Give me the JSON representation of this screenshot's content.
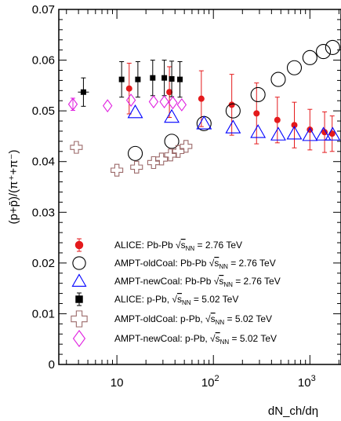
{
  "chart_data": {
    "type": "scatter",
    "title": "",
    "xlabel": "dN_ch/dη",
    "ylabel": "(p+p̄)/(π⁺+π⁻)",
    "x_scale": "log",
    "xlim": [
      2.5,
      2100
    ],
    "ylim": [
      0,
      0.07
    ],
    "x_ticks": [
      {
        "value": 10,
        "base": "10",
        "exp": ""
      },
      {
        "value": 100,
        "base": "10",
        "exp": "2"
      },
      {
        "value": 1000,
        "base": "10",
        "exp": "3"
      }
    ],
    "y_ticks": [
      0,
      0.01,
      0.02,
      0.03,
      0.04,
      0.05,
      0.06,
      0.07
    ],
    "y_tick_labels": [
      "0",
      "0.01",
      "0.02",
      "0.03",
      "0.04",
      "0.05",
      "0.06",
      "0.07"
    ],
    "grid": false,
    "legend_position": "bottom-left",
    "series": [
      {
        "name": "ALICE: Pb-Pb",
        "energy": "2.76 TeV",
        "marker": "filled-circle",
        "color": "#e41a1c",
        "points": [
          {
            "x": 13.4,
            "y": 0.0544,
            "err": 0.005
          },
          {
            "x": 35,
            "y": 0.0537,
            "err": 0.005
          },
          {
            "x": 75,
            "y": 0.0524,
            "err": 0.0055
          },
          {
            "x": 155,
            "y": 0.0512,
            "err": 0.006
          },
          {
            "x": 280,
            "y": 0.0495,
            "err": 0.006
          },
          {
            "x": 460,
            "y": 0.0482,
            "err": 0.0045
          },
          {
            "x": 690,
            "y": 0.0472,
            "err": 0.0045
          },
          {
            "x": 1000,
            "y": 0.0463,
            "err": 0.004
          },
          {
            "x": 1420,
            "y": 0.0458,
            "err": 0.004
          },
          {
            "x": 1700,
            "y": 0.0455,
            "err": 0.0035
          }
        ]
      },
      {
        "name": "AMPT-oldCoal:   Pb-Pb",
        "energy": "2.76 TeV",
        "marker": "open-circle",
        "color": "#000000",
        "points": [
          {
            "x": 15.5,
            "y": 0.0416
          },
          {
            "x": 37,
            "y": 0.044
          },
          {
            "x": 80,
            "y": 0.0475
          },
          {
            "x": 160,
            "y": 0.05
          },
          {
            "x": 290,
            "y": 0.0532
          },
          {
            "x": 470,
            "y": 0.0562
          },
          {
            "x": 690,
            "y": 0.0585
          },
          {
            "x": 1000,
            "y": 0.0605
          },
          {
            "x": 1380,
            "y": 0.0617
          },
          {
            "x": 1720,
            "y": 0.0625
          }
        ]
      },
      {
        "name": "AMPT-newCoal: Pb-Pb",
        "energy": "2.76 TeV",
        "marker": "open-triangle",
        "color": "#0000ff",
        "points": [
          {
            "x": 15.5,
            "y": 0.0497
          },
          {
            "x": 37,
            "y": 0.0488
          },
          {
            "x": 80,
            "y": 0.0475
          },
          {
            "x": 160,
            "y": 0.0467
          },
          {
            "x": 290,
            "y": 0.0458
          },
          {
            "x": 470,
            "y": 0.0453
          },
          {
            "x": 690,
            "y": 0.0455
          },
          {
            "x": 1000,
            "y": 0.0452
          },
          {
            "x": 1380,
            "y": 0.0453
          },
          {
            "x": 1720,
            "y": 0.0453
          }
        ]
      },
      {
        "name": "ALICE: p-Pb,",
        "energy": "5.02 TeV",
        "marker": "filled-square",
        "color": "#000000",
        "points": [
          {
            "x": 4.5,
            "y": 0.0537,
            "err": 0.0028
          },
          {
            "x": 11.2,
            "y": 0.0562,
            "err": 0.0035
          },
          {
            "x": 16.5,
            "y": 0.0562,
            "err": 0.0035
          },
          {
            "x": 23.5,
            "y": 0.0565,
            "err": 0.0035
          },
          {
            "x": 31,
            "y": 0.0565,
            "err": 0.0035
          },
          {
            "x": 37,
            "y": 0.0563,
            "err": 0.0035
          },
          {
            "x": 45,
            "y": 0.0562,
            "err": 0.0035
          }
        ]
      },
      {
        "name": "AMPT-oldCoal:   p-Pb,",
        "energy": "5.02 TeV",
        "marker": "open-cross",
        "color": "#9c6a6a",
        "points": [
          {
            "x": 3.8,
            "y": 0.0428
          },
          {
            "x": 10,
            "y": 0.0383
          },
          {
            "x": 16,
            "y": 0.0389
          },
          {
            "x": 24,
            "y": 0.0398
          },
          {
            "x": 29,
            "y": 0.0405
          },
          {
            "x": 36,
            "y": 0.0413
          },
          {
            "x": 43,
            "y": 0.042
          },
          {
            "x": 52,
            "y": 0.043
          }
        ]
      },
      {
        "name": "AMPT-newCoal: p-Pb,",
        "energy": "5.02 TeV",
        "marker": "open-diamond",
        "color": "#e020e0",
        "points": [
          {
            "x": 3.5,
            "y": 0.0513,
            "err": 0.0012
          },
          {
            "x": 8,
            "y": 0.051
          },
          {
            "x": 14,
            "y": 0.0521
          },
          {
            "x": 24,
            "y": 0.0518
          },
          {
            "x": 31,
            "y": 0.0518
          },
          {
            "x": 38,
            "y": 0.0516
          },
          {
            "x": 47,
            "y": 0.0512
          }
        ]
      }
    ]
  }
}
